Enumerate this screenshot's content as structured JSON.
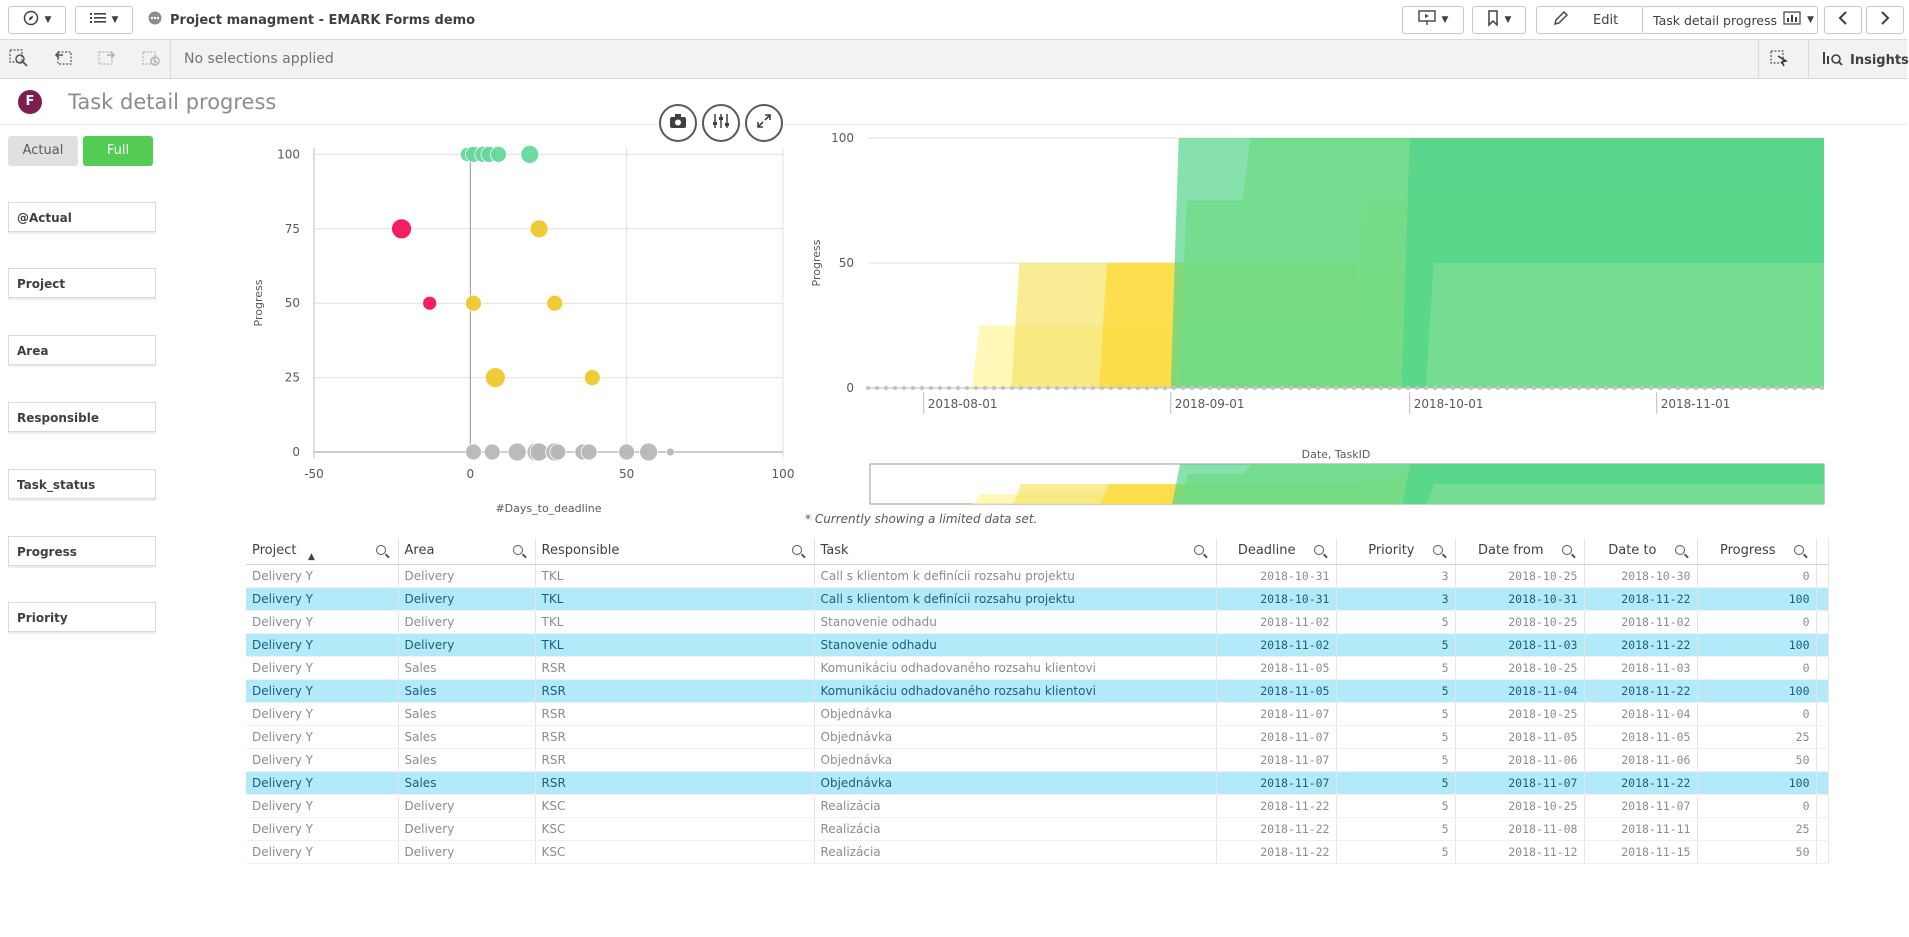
{
  "app": {
    "title": "Project managment - EMARK Forms demo",
    "edit_label": "Edit",
    "sheet_selector": "Task detail progress",
    "insights_label": "Insights",
    "no_selections": "No selections applied",
    "sheet_title": "Task detail progress",
    "logo_letter": "F"
  },
  "toggle": {
    "actual": "Actual",
    "full": "Full"
  },
  "filters": [
    "@Actual",
    "Project",
    "Area",
    "Responsible",
    "Task_status",
    "Progress",
    "Priority"
  ],
  "chart_data": [
    {
      "type": "scatter",
      "xlabel": "#Days_to_deadline",
      "ylabel": "Progress",
      "xlim": [
        -50,
        100
      ],
      "ylim": [
        0,
        100
      ],
      "x_ticks": [
        "-50",
        "0",
        "50",
        "100"
      ],
      "y_ticks": [
        "0",
        "25",
        "50",
        "75",
        "100"
      ],
      "points": [
        {
          "x": -1,
          "y": 100,
          "size": 7,
          "color": "#66d99a"
        },
        {
          "x": 1,
          "y": 100,
          "size": 8,
          "color": "#66d99a"
        },
        {
          "x": 4,
          "y": 100,
          "size": 8,
          "color": "#66d99a"
        },
        {
          "x": 6,
          "y": 100,
          "size": 8,
          "color": "#66d99a"
        },
        {
          "x": 9,
          "y": 100,
          "size": 8,
          "color": "#66d99a"
        },
        {
          "x": 19,
          "y": 100,
          "size": 9,
          "color": "#66d99a"
        },
        {
          "x": -22,
          "y": 75,
          "size": 10,
          "color": "#f5135a"
        },
        {
          "x": 22,
          "y": 75,
          "size": 9,
          "color": "#f0c92e"
        },
        {
          "x": -13,
          "y": 50,
          "size": 7,
          "color": "#f5135a"
        },
        {
          "x": 1,
          "y": 50,
          "size": 8,
          "color": "#f0c92e"
        },
        {
          "x": 27,
          "y": 50,
          "size": 8,
          "color": "#f0c92e"
        },
        {
          "x": 8,
          "y": 25,
          "size": 10,
          "color": "#f0c92e"
        },
        {
          "x": 39,
          "y": 25,
          "size": 8,
          "color": "#f0c92e"
        },
        {
          "x": 1,
          "y": 0,
          "size": 8,
          "color": "#b8b8b8"
        },
        {
          "x": 7,
          "y": 0,
          "size": 8,
          "color": "#b8b8b8"
        },
        {
          "x": 15,
          "y": 0,
          "size": 9,
          "color": "#b8b8b8"
        },
        {
          "x": 21,
          "y": 0,
          "size": 9,
          "color": "#b8b8b8"
        },
        {
          "x": 22,
          "y": 0,
          "size": 9,
          "color": "#b8b8b8"
        },
        {
          "x": 27,
          "y": 0,
          "size": 9,
          "color": "#b8b8b8"
        },
        {
          "x": 28,
          "y": 0,
          "size": 8,
          "color": "#b8b8b8"
        },
        {
          "x": 36,
          "y": 0,
          "size": 8,
          "color": "#b8b8b8"
        },
        {
          "x": 38,
          "y": 0,
          "size": 8,
          "color": "#b8b8b8"
        },
        {
          "x": 50,
          "y": 0,
          "size": 8,
          "color": "#b8b8b8"
        },
        {
          "x": 57,
          "y": 0,
          "size": 9,
          "color": "#b8b8b8"
        },
        {
          "x": 64,
          "y": 0,
          "size": 4,
          "color": "#b8b8b8"
        }
      ]
    },
    {
      "type": "area",
      "xlabel": "Date, TaskID",
      "ylabel": "Progress",
      "ylim": [
        0,
        100
      ],
      "y_ticks": [
        "0",
        "50",
        "100"
      ],
      "x_ticks": [
        "2018-08-01",
        "2018-09-01",
        "2018-10-01",
        "2018-11-01"
      ],
      "xlim": [
        "2018-07-25",
        "2018-11-22"
      ],
      "series": [
        {
          "color": "#fff59d",
          "x": [
            "2018-07-25",
            "2018-08-07",
            "2018-08-08",
            "2018-09-01",
            "2018-09-02",
            "2018-11-22"
          ],
          "values": [
            0,
            0,
            25,
            25,
            50,
            50
          ]
        },
        {
          "color": "#f5e56b",
          "x": [
            "2018-07-25",
            "2018-08-12",
            "2018-08-13",
            "2018-09-02",
            "2018-09-03",
            "2018-11-22"
          ],
          "values": [
            0,
            0,
            50,
            50,
            50,
            50
          ]
        },
        {
          "color": "#fdd835",
          "x": [
            "2018-07-25",
            "2018-08-23",
            "2018-08-24",
            "2018-09-29",
            "2018-09-30",
            "2018-11-22"
          ],
          "values": [
            0,
            0,
            50,
            50,
            75,
            75
          ]
        },
        {
          "color": "#ecef8a",
          "x": [
            "2018-07-25",
            "2018-09-02",
            "2018-09-03",
            "2018-09-24",
            "2018-09-25",
            "2018-11-22"
          ],
          "values": [
            0,
            0,
            25,
            25,
            75,
            75
          ]
        },
        {
          "color": "#aee86f",
          "x": [
            "2018-07-25",
            "2018-09-02",
            "2018-09-03",
            "2018-09-10",
            "2018-09-11",
            "2018-11-22"
          ],
          "values": [
            0,
            0,
            75,
            75,
            100,
            100
          ]
        },
        {
          "color": "#58d68d",
          "x": [
            "2018-07-25",
            "2018-09-01",
            "2018-09-02",
            "2018-11-22"
          ],
          "values": [
            0,
            0,
            100,
            100
          ]
        },
        {
          "color": "#4fd68c",
          "x": [
            "2018-07-25",
            "2018-09-30",
            "2018-10-01",
            "2018-11-22"
          ],
          "values": [
            0,
            0,
            100,
            100
          ]
        },
        {
          "color": "#7fdf96",
          "x": [
            "2018-07-25",
            "2018-10-03",
            "2018-10-04",
            "2018-11-22"
          ],
          "values": [
            0,
            0,
            50,
            50
          ]
        }
      ]
    }
  ],
  "note": "* Currently showing a limited data set.",
  "table": {
    "columns": [
      "Project",
      "Area",
      "Responsible",
      "Task",
      "Deadline",
      "Priority",
      "Date from",
      "Date to",
      "Progress"
    ],
    "rows": [
      {
        "hl": false,
        "cells": [
          "Delivery Y",
          "Delivery",
          "TKL",
          "Call s klientom k definícii rozsahu projektu",
          "2018-10-31",
          "3",
          "2018-10-25",
          "2018-10-30",
          "0"
        ]
      },
      {
        "hl": true,
        "cells": [
          "Delivery Y",
          "Delivery",
          "TKL",
          "Call s klientom k definícii rozsahu projektu",
          "2018-10-31",
          "3",
          "2018-10-31",
          "2018-11-22",
          "100"
        ]
      },
      {
        "hl": false,
        "cells": [
          "Delivery Y",
          "Delivery",
          "TKL",
          "Stanovenie odhadu",
          "2018-11-02",
          "5",
          "2018-10-25",
          "2018-11-02",
          "0"
        ]
      },
      {
        "hl": true,
        "cells": [
          "Delivery Y",
          "Delivery",
          "TKL",
          "Stanovenie odhadu",
          "2018-11-02",
          "5",
          "2018-11-03",
          "2018-11-22",
          "100"
        ]
      },
      {
        "hl": false,
        "cells": [
          "Delivery Y",
          "Sales",
          "RSR",
          "Komunikáciu odhadovaného rozsahu klientovi",
          "2018-11-05",
          "5",
          "2018-10-25",
          "2018-11-03",
          "0"
        ]
      },
      {
        "hl": true,
        "cells": [
          "Delivery Y",
          "Sales",
          "RSR",
          "Komunikáciu odhadovaného rozsahu klientovi",
          "2018-11-05",
          "5",
          "2018-11-04",
          "2018-11-22",
          "100"
        ]
      },
      {
        "hl": false,
        "cells": [
          "Delivery Y",
          "Sales",
          "RSR",
          "Objednávka",
          "2018-11-07",
          "5",
          "2018-10-25",
          "2018-11-04",
          "0"
        ]
      },
      {
        "hl": false,
        "cells": [
          "Delivery Y",
          "Sales",
          "RSR",
          "Objednávka",
          "2018-11-07",
          "5",
          "2018-11-05",
          "2018-11-05",
          "25"
        ]
      },
      {
        "hl": false,
        "cells": [
          "Delivery Y",
          "Sales",
          "RSR",
          "Objednávka",
          "2018-11-07",
          "5",
          "2018-11-06",
          "2018-11-06",
          "50"
        ]
      },
      {
        "hl": true,
        "cells": [
          "Delivery Y",
          "Sales",
          "RSR",
          "Objednávka",
          "2018-11-07",
          "5",
          "2018-11-07",
          "2018-11-22",
          "100"
        ]
      },
      {
        "hl": false,
        "cells": [
          "Delivery Y",
          "Delivery",
          "KSC",
          "Realizácia",
          "2018-11-22",
          "5",
          "2018-10-25",
          "2018-11-07",
          "0"
        ]
      },
      {
        "hl": false,
        "cells": [
          "Delivery Y",
          "Delivery",
          "KSC",
          "Realizácia",
          "2018-11-22",
          "5",
          "2018-11-08",
          "2018-11-11",
          "25"
        ]
      },
      {
        "hl": false,
        "cells": [
          "Delivery Y",
          "Delivery",
          "KSC",
          "Realizácia",
          "2018-11-22",
          "5",
          "2018-11-12",
          "2018-11-15",
          "50"
        ]
      }
    ]
  }
}
